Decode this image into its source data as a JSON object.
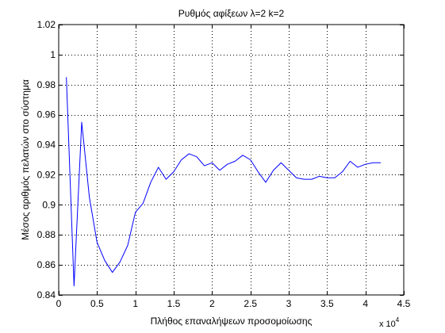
{
  "chart_data": {
    "type": "line",
    "title": "Ρυθμός αφίξεων λ=2 k=2",
    "xlabel": "Πλήθος επαναλήψεων προσομοίωσης",
    "ylabel": "Μέσος αριθμός πελατών στο σύστημα",
    "x_multiplier_label": "x 10",
    "x_multiplier_exponent": "4",
    "xlim": [
      0,
      4.5
    ],
    "ylim": [
      0.84,
      1.02
    ],
    "xticks": [
      {
        "value": 0,
        "label": "0"
      },
      {
        "value": 0.5,
        "label": "0.5"
      },
      {
        "value": 1,
        "label": "1"
      },
      {
        "value": 1.5,
        "label": "1.5"
      },
      {
        "value": 2,
        "label": "2"
      },
      {
        "value": 2.5,
        "label": "2.5"
      },
      {
        "value": 3,
        "label": "3"
      },
      {
        "value": 3.5,
        "label": "3.5"
      },
      {
        "value": 4,
        "label": "4"
      },
      {
        "value": 4.5,
        "label": "4.5"
      }
    ],
    "yticks": [
      {
        "value": 0.84,
        "label": "0.84"
      },
      {
        "value": 0.86,
        "label": "0.86"
      },
      {
        "value": 0.88,
        "label": "0.88"
      },
      {
        "value": 0.9,
        "label": "0.9"
      },
      {
        "value": 0.92,
        "label": "0.92"
      },
      {
        "value": 0.94,
        "label": "0.94"
      },
      {
        "value": 0.96,
        "label": "0.96"
      },
      {
        "value": 0.98,
        "label": "0.98"
      },
      {
        "value": 1,
        "label": "1"
      },
      {
        "value": 1.02,
        "label": "1.02"
      }
    ],
    "grid": true,
    "grid_style": "dotted",
    "line_color": "#0000ff",
    "series": [
      {
        "x": [
          0.1,
          0.2,
          0.3,
          0.4,
          0.5,
          0.6,
          0.7,
          0.8,
          0.9,
          1.0,
          1.1,
          1.2,
          1.3,
          1.4,
          1.5,
          1.6,
          1.7,
          1.8,
          1.9,
          2.0,
          2.1,
          2.2,
          2.3,
          2.4,
          2.5,
          2.6,
          2.7,
          2.8,
          2.9,
          3.0,
          3.1,
          3.2,
          3.3,
          3.4,
          3.5,
          3.6,
          3.7,
          3.8,
          3.9,
          4.0,
          4.1,
          4.2
        ],
        "y": [
          0.985,
          0.846,
          0.955,
          0.905,
          0.875,
          0.863,
          0.855,
          0.862,
          0.873,
          0.895,
          0.901,
          0.915,
          0.925,
          0.917,
          0.922,
          0.93,
          0.934,
          0.932,
          0.926,
          0.928,
          0.923,
          0.927,
          0.929,
          0.933,
          0.93,
          0.922,
          0.915,
          0.923,
          0.928,
          0.923,
          0.918,
          0.917,
          0.917,
          0.919,
          0.918,
          0.918,
          0.922,
          0.929,
          0.925,
          0.927,
          0.928,
          0.928
        ]
      }
    ]
  }
}
